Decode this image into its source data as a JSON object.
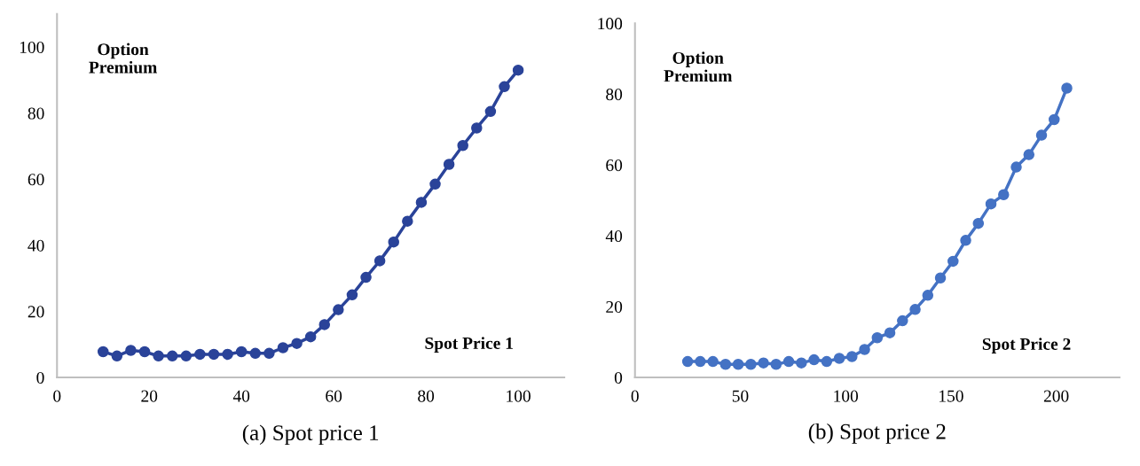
{
  "chart_data": [
    {
      "type": "line",
      "ylabel": "Option Premium",
      "xlabel": "Spot Price 1",
      "annotations": [
        "(a) Spot price 1"
      ],
      "marker": "circle",
      "line_style": "solid",
      "grid": false,
      "legend": false,
      "x": [
        10,
        13,
        16,
        19,
        22,
        25,
        28,
        31,
        34,
        37,
        40,
        43,
        46,
        49,
        52,
        55,
        58,
        61,
        64,
        67,
        70,
        73,
        76,
        79,
        82,
        85,
        88,
        91,
        94,
        97,
        100
      ],
      "series": [
        {
          "color": "#2a4399",
          "values": [
            7.8,
            6.5,
            8.2,
            7.8,
            6.5,
            6.5,
            6.5,
            7,
            7,
            7,
            7.8,
            7.3,
            7.3,
            9,
            10.3,
            12.3,
            16,
            20.5,
            25,
            30.3,
            35.3,
            41,
            47.3,
            53,
            58.5,
            64.5,
            70.2,
            75.5,
            80.5,
            88,
            93
          ]
        }
      ],
      "xlim": [
        0,
        110
      ],
      "xticks": [
        0,
        20,
        40,
        60,
        80,
        100
      ],
      "ylim": [
        0,
        110
      ],
      "yticks": [
        0,
        20,
        40,
        60,
        80,
        100
      ]
    },
    {
      "type": "line",
      "ylabel": "Option Premium",
      "xlabel": "Spot Price 2",
      "annotations": [
        "(b) Spot price 2"
      ],
      "marker": "circle",
      "line_style": "solid",
      "grid": false,
      "legend": false,
      "x": [
        25,
        31,
        37,
        43,
        49,
        55,
        61,
        67,
        73,
        79,
        85,
        91,
        97,
        103,
        109,
        115,
        121,
        127,
        133,
        139,
        145,
        151,
        157,
        163,
        169,
        175,
        181,
        187,
        193,
        199,
        205
      ],
      "series": [
        {
          "color": "#4472c4",
          "values": [
            4.5,
            4.5,
            4.5,
            3.7,
            3.7,
            3.7,
            4.1,
            3.7,
            4.5,
            4.1,
            5,
            4.5,
            5.4,
            5.9,
            7.9,
            11.2,
            12.6,
            16,
            19.2,
            23.2,
            28.1,
            32.8,
            38.7,
            43.5,
            49,
            51.6,
            59.4,
            62.9,
            68.4,
            72.8,
            81.7
          ]
        }
      ],
      "xlim": [
        0,
        230
      ],
      "xticks": [
        0,
        50,
        100,
        150,
        200
      ],
      "ylim": [
        0,
        100
      ],
      "yticks": [
        0,
        20,
        40,
        60,
        80,
        100
      ]
    }
  ]
}
